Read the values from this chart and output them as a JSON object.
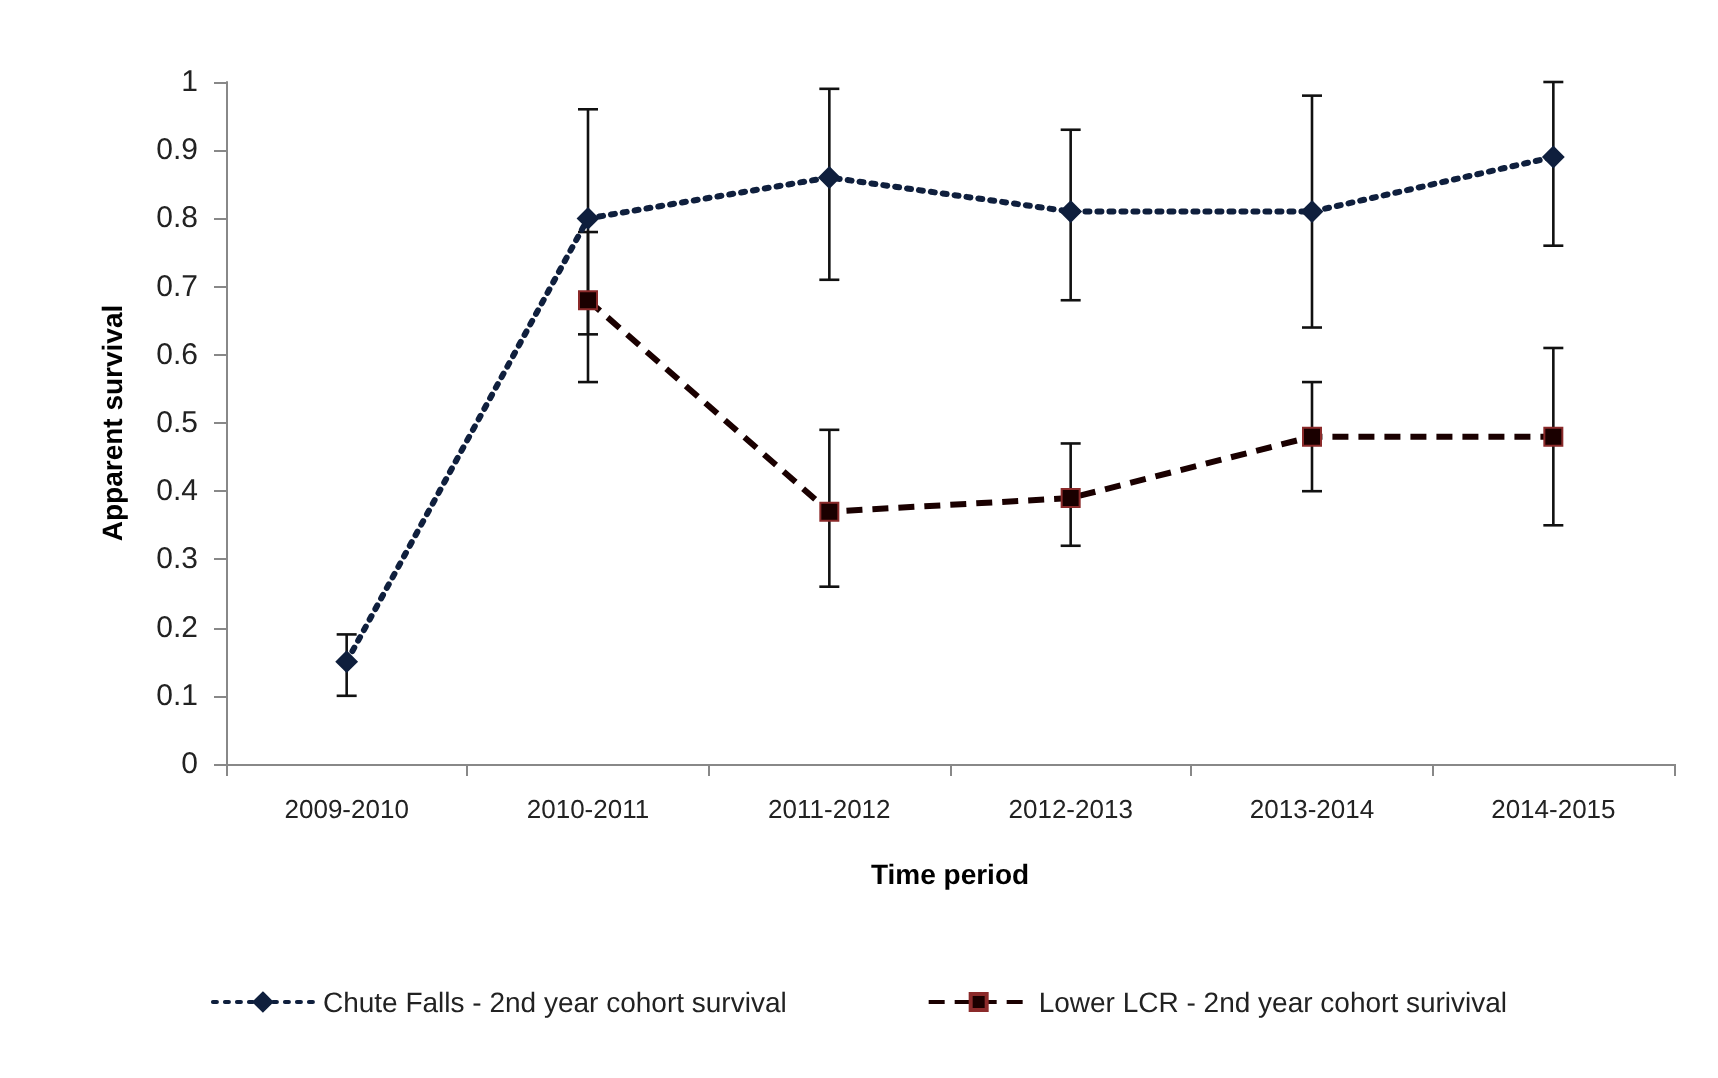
{
  "chart_data": {
    "type": "line",
    "xlabel": "Time period",
    "ylabel": "Apparent survival",
    "categories": [
      "2009-2010",
      "2010-2011",
      "2011-2012",
      "2012-2013",
      "2013-2014",
      "2014-2015"
    ],
    "ylim": [
      0,
      1
    ],
    "yticks": [
      0,
      {
        "value": 0.1,
        "label": "0.1"
      },
      {
        "value": 0.2,
        "label": "0.2"
      },
      {
        "value": 0.3,
        "label": "0.3"
      },
      {
        "value": 0.4,
        "label": "0.4"
      },
      {
        "value": 0.5,
        "label": "0.5"
      },
      {
        "value": 0.6,
        "label": "0.6"
      },
      {
        "value": 0.7,
        "label": "0.7"
      },
      {
        "value": 0.8,
        "label": "0.8"
      },
      {
        "value": 0.9,
        "label": "0.9"
      },
      1
    ],
    "grid": false,
    "legend": "bottom",
    "series": [
      {
        "name": "Chute Falls - 2nd year cohort survival",
        "color": "#0f1f3d",
        "marker": "diamond",
        "line_style": "dotted",
        "values": [
          0.15,
          0.8,
          0.86,
          0.81,
          0.81,
          0.89
        ],
        "errors": [
          [
            0.1,
            0.19
          ],
          [
            0.63,
            0.96
          ],
          [
            0.71,
            0.99
          ],
          [
            0.68,
            0.93
          ],
          [
            0.64,
            0.98
          ],
          [
            0.76,
            1.0
          ]
        ]
      },
      {
        "name": "Lower LCR - 2nd year cohort surivival",
        "color": "#1a0000",
        "marker": "square",
        "line_style": "dashed",
        "values": [
          null,
          0.68,
          0.37,
          0.39,
          0.48,
          0.48
        ],
        "errors": [
          null,
          [
            0.56,
            0.78
          ],
          [
            0.26,
            0.49
          ],
          [
            0.32,
            0.47
          ],
          [
            0.4,
            0.56
          ],
          [
            0.35,
            0.61
          ]
        ]
      }
    ]
  }
}
